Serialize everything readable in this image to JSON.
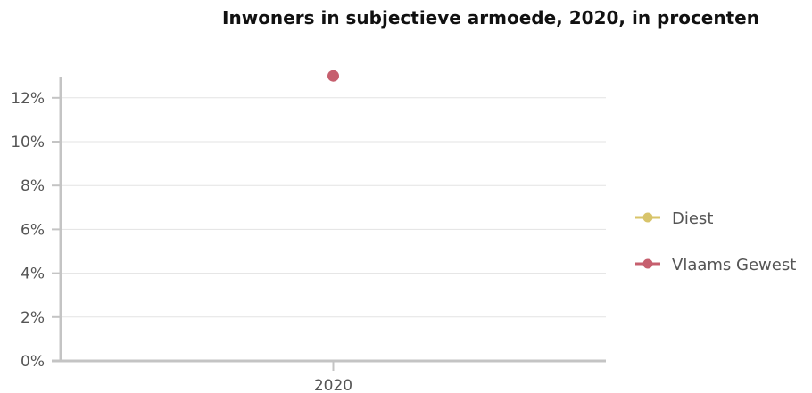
{
  "chart_data": {
    "type": "line",
    "title": "Inwoners in subjectieve armoede, 2020, in procenten",
    "x": [
      "2020"
    ],
    "yticks": [
      "0%",
      "2%",
      "4%",
      "6%",
      "8%",
      "10%",
      "12%"
    ],
    "ylim": [
      0,
      13
    ],
    "grid": true,
    "legend_position": "right",
    "series": [
      {
        "name": "Diest",
        "color": "#d8c46a",
        "values": [
          null
        ]
      },
      {
        "name": "Vlaams Gewest",
        "color": "#c65f6e",
        "values": [
          13
        ]
      }
    ]
  }
}
